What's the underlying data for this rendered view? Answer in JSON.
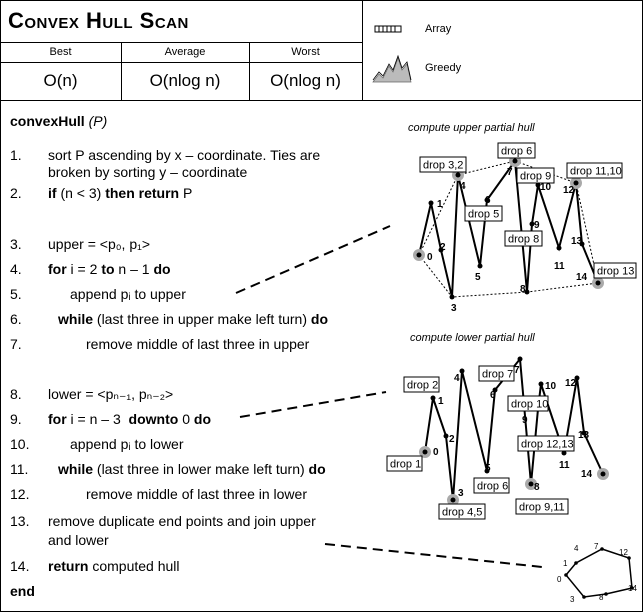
{
  "header": {
    "title": "Convex Hull Scan",
    "columns": [
      {
        "label": "Best",
        "value": "O(n)"
      },
      {
        "label": "Average",
        "value": "O(nlog n)"
      },
      {
        "label": "Worst",
        "value": "O(nlog n)"
      }
    ]
  },
  "legend": {
    "array": "Array",
    "greedy": "Greedy"
  },
  "code": {
    "function": "convexHull",
    "param": "(P)",
    "lines": [
      {
        "n": "1.",
        "t": "sort P ascending by x – coordinate. Ties are"
      },
      {
        "n": "",
        "t": "broken by sorting y – coordinate"
      },
      {
        "n": "2.",
        "kw1": "if",
        "mid": " (n < 3) ",
        "kw2": "then return",
        "tail": " P"
      },
      {
        "n": "3.",
        "t": "upper = <p₀, p₁>"
      },
      {
        "n": "4.",
        "kw1": "for",
        "mid": " i = 2 ",
        "kw2": "to",
        "tail": " n – 1 ",
        "kw3": "do"
      },
      {
        "n": "5.",
        "t": "append pᵢ to upper"
      },
      {
        "n": "6.",
        "kw1": "while",
        "mid": " (last three in upper make left turn) ",
        "kw2": "do"
      },
      {
        "n": "7.",
        "t": "remove middle of last three in upper"
      },
      {
        "n": "8.",
        "t": "lower = <pₙ₋₁, pₙ₋₂>"
      },
      {
        "n": "9.",
        "kw1": "for",
        "mid": " i = n – 3  ",
        "kw2": "downto",
        "tail": " 0 ",
        "kw3": "do"
      },
      {
        "n": "10.",
        "t": "append pᵢ to lower"
      },
      {
        "n": "11.",
        "kw1": "while",
        "mid": " (last three in lower make left turn) ",
        "kw2": "do"
      },
      {
        "n": "12.",
        "t": "remove middle of last three in lower"
      },
      {
        "n": "13.",
        "t": "remove duplicate end points and join upper"
      },
      {
        "n": "",
        "t": "and lower"
      },
      {
        "n": "14.",
        "kw1": "return",
        "mid": " computed hull"
      }
    ],
    "end": "end"
  },
  "upper": {
    "caption": "compute upper partial hull",
    "drops": [
      "drop 3,2",
      "drop 6",
      "drop 5",
      "drop 9",
      "drop 11,10",
      "drop 8",
      "drop 13"
    ]
  },
  "lower": {
    "caption": "compute lower partial hull",
    "drops": [
      "drop 2",
      "drop 7",
      "drop 1",
      "drop 10",
      "drop 12,13",
      "drop 6",
      "drop 4,5",
      "drop 9,11"
    ]
  },
  "point_labels": [
    "0",
    "1",
    "2",
    "3",
    "4",
    "5",
    "6",
    "7",
    "8",
    "9",
    "10",
    "11",
    "12",
    "13",
    "14"
  ],
  "final_labels": [
    "1",
    "4",
    "7",
    "12",
    "0",
    "14",
    "3",
    "8"
  ]
}
